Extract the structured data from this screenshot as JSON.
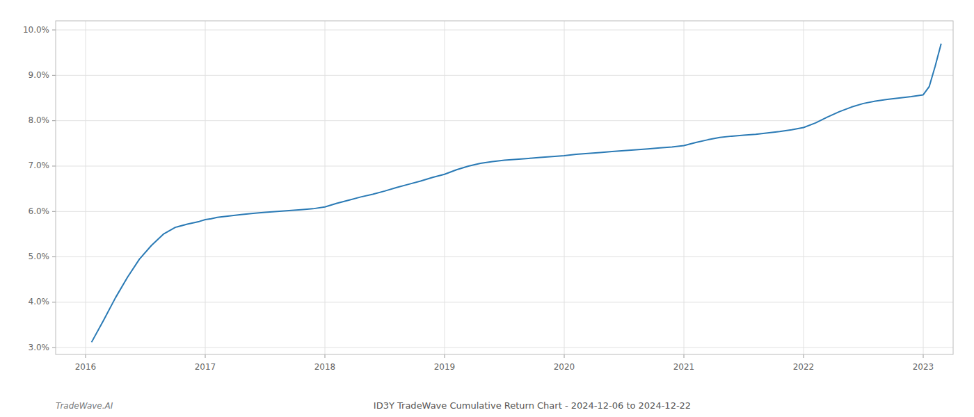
{
  "chart_data": {
    "type": "line",
    "title": "ID3Y TradeWave Cumulative Return Chart - 2024-12-06 to 2024-12-22",
    "annotations": [
      "TradeWave.AI"
    ],
    "color": "#2a7ab5",
    "grid": true,
    "xlim": [
      2015.75,
      2023.25
    ],
    "ylim": [
      0.0285,
      0.102
    ],
    "xticks": [
      2016,
      2017,
      2018,
      2019,
      2020,
      2021,
      2022,
      2023
    ],
    "yticks": [
      {
        "value": 0.03,
        "label": "3.0%"
      },
      {
        "value": 0.04,
        "label": "4.0%"
      },
      {
        "value": 0.05,
        "label": "5.0%"
      },
      {
        "value": 0.06,
        "label": "6.0%"
      },
      {
        "value": 0.07,
        "label": "7.0%"
      },
      {
        "value": 0.08,
        "label": "8.0%"
      },
      {
        "value": 0.09,
        "label": "9.0%"
      },
      {
        "value": 0.1,
        "label": "10.0%"
      }
    ],
    "x": [
      2016.05,
      2016.15,
      2016.25,
      2016.35,
      2016.45,
      2016.55,
      2016.65,
      2016.75,
      2016.85,
      2016.95,
      2017.0,
      2017.05,
      2017.1,
      2017.2,
      2017.3,
      2017.4,
      2017.5,
      2017.6,
      2017.7,
      2017.8,
      2017.9,
      2018.0,
      2018.1,
      2018.2,
      2018.3,
      2018.4,
      2018.5,
      2018.6,
      2018.7,
      2018.8,
      2018.9,
      2019.0,
      2019.1,
      2019.2,
      2019.3,
      2019.4,
      2019.5,
      2019.6,
      2019.7,
      2019.8,
      2019.9,
      2020.0,
      2020.1,
      2020.2,
      2020.3,
      2020.4,
      2020.5,
      2020.6,
      2020.7,
      2020.8,
      2020.9,
      2021.0,
      2021.1,
      2021.2,
      2021.3,
      2021.4,
      2021.5,
      2021.6,
      2021.7,
      2021.8,
      2021.9,
      2022.0,
      2022.1,
      2022.2,
      2022.3,
      2022.4,
      2022.5,
      2022.6,
      2022.7,
      2022.8,
      2022.9,
      2023.0,
      2023.05,
      2023.1,
      2023.15
    ],
    "values": [
      0.0312,
      0.036,
      0.041,
      0.0455,
      0.0495,
      0.0525,
      0.055,
      0.0565,
      0.0572,
      0.0578,
      0.0582,
      0.0584,
      0.0587,
      0.059,
      0.0593,
      0.0596,
      0.0598,
      0.06,
      0.0602,
      0.0604,
      0.0606,
      0.061,
      0.0618,
      0.0625,
      0.0632,
      0.0638,
      0.0645,
      0.0653,
      0.066,
      0.0667,
      0.0675,
      0.0682,
      0.0692,
      0.07,
      0.0706,
      0.071,
      0.0713,
      0.0715,
      0.0717,
      0.0719,
      0.0721,
      0.0723,
      0.0726,
      0.0728,
      0.073,
      0.0732,
      0.0734,
      0.0736,
      0.0738,
      0.074,
      0.0742,
      0.0745,
      0.0752,
      0.0758,
      0.0763,
      0.0766,
      0.0768,
      0.077,
      0.0773,
      0.0776,
      0.078,
      0.0785,
      0.0795,
      0.0808,
      0.082,
      0.083,
      0.0838,
      0.0843,
      0.0847,
      0.085,
      0.0853,
      0.0857,
      0.0875,
      0.092,
      0.097
    ]
  }
}
